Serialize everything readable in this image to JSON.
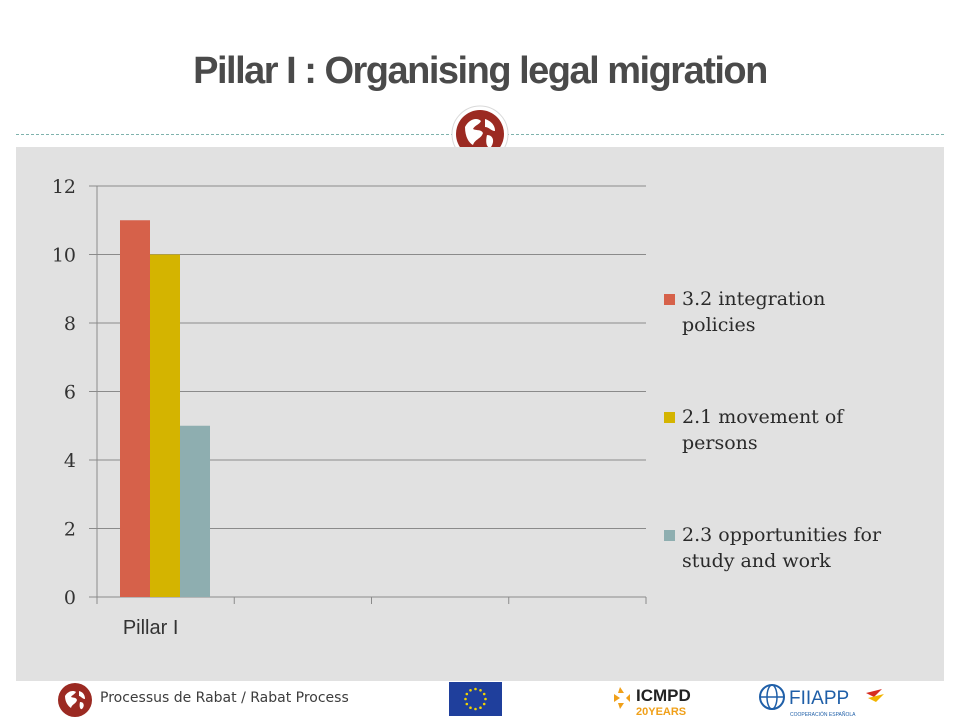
{
  "slide": {
    "title": "Pillar I : Organising legal migration"
  },
  "chart_data": {
    "type": "bar",
    "categories": [
      "Pillar I",
      "",
      "",
      ""
    ],
    "series": [
      {
        "name": "3.2 integration policies",
        "values": [
          11,
          null,
          null,
          null
        ],
        "color": "#d6614a"
      },
      {
        "name": "2.1 movement of persons",
        "values": [
          10,
          null,
          null,
          null
        ],
        "color": "#d4b400"
      },
      {
        "name": "2.3 opportunities for study and work",
        "values": [
          5,
          null,
          null,
          null
        ],
        "color": "#8eaeb0"
      }
    ],
    "title": "",
    "xlabel": "",
    "ylabel": "",
    "ylim": [
      0,
      12
    ],
    "yticks": [
      "0",
      "2",
      "4",
      "6",
      "8",
      "10",
      "12"
    ],
    "grid": true,
    "legend_position": "right",
    "legend_lines": [
      [
        "3.2 integration",
        "policies"
      ],
      [
        "2.1 movement of",
        "persons"
      ],
      [
        "2.3 opportunities for",
        "study and work"
      ]
    ]
  },
  "footer": {
    "org_text": "Processus de Rabat / Rabat Process",
    "icmpd_text": "ICMPD",
    "icmpd_sub": "20YEARS",
    "fiiapp_text": "FIIAPP",
    "fiiapp_sub": "COOPERACIÓN ESPAÑOLA",
    "accent": "#9b2a22"
  }
}
